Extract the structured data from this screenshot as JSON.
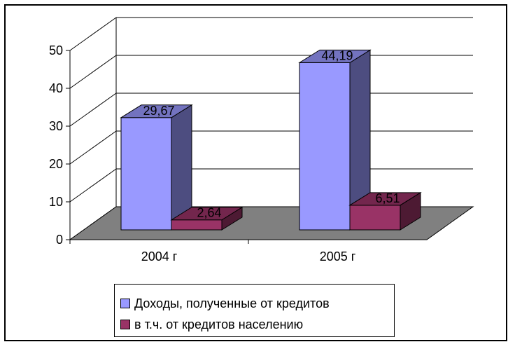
{
  "chart_data": {
    "type": "bar",
    "categories": [
      "2004 г",
      "2005 г"
    ],
    "series": [
      {
        "name": "Доходы, полученные от кредитов",
        "values": [
          29.67,
          44.19
        ],
        "labels": [
          "29,67",
          "44,19"
        ],
        "color": "#9999ff"
      },
      {
        "name": "в т.ч. от кредитов населению",
        "values": [
          2.64,
          6.51
        ],
        "labels": [
          "2,64",
          "6,51"
        ],
        "color": "#993366"
      }
    ],
    "ylim": [
      0,
      50
    ],
    "yticks": [
      "0",
      "10",
      "20",
      "30",
      "40",
      "50"
    ],
    "grid": true,
    "legend_position": "bottom",
    "floor_color": "#808080"
  }
}
